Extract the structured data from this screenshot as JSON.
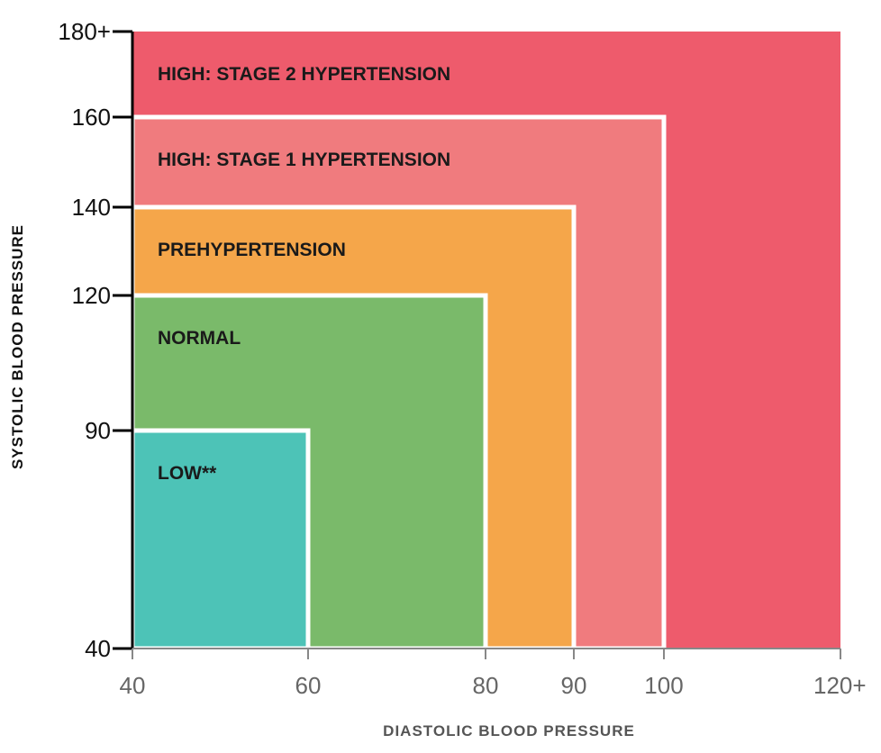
{
  "chart_data": {
    "type": "area",
    "xlabel": "DIASTOLIC BLOOD PRESSURE",
    "ylabel": "SYSTOLIC BLOOD PRESSURE",
    "x_ticks": [
      {
        "value": 40,
        "label": "40"
      },
      {
        "value": 60,
        "label": "60"
      },
      {
        "value": 80,
        "label": "80"
      },
      {
        "value": 90,
        "label": "90"
      },
      {
        "value": 100,
        "label": "100"
      },
      {
        "value": 120,
        "label": "120+"
      }
    ],
    "y_ticks": [
      {
        "value": 40,
        "label": "40"
      },
      {
        "value": 90,
        "label": "90"
      },
      {
        "value": 120,
        "label": "120"
      },
      {
        "value": 140,
        "label": "140"
      },
      {
        "value": 160,
        "label": "160"
      },
      {
        "value": 180,
        "label": "180+"
      }
    ],
    "zones": [
      {
        "label": "HIGH: STAGE 2 HYPERTENSION",
        "x_max": 120,
        "y_max": 180,
        "color": "#ee5b6c"
      },
      {
        "label": "HIGH: STAGE 1 HYPERTENSION",
        "x_max": 100,
        "y_max": 160,
        "color": "#f07b7e"
      },
      {
        "label": "PREHYPERTENSION",
        "x_max": 90,
        "y_max": 140,
        "color": "#f5a64a"
      },
      {
        "label": "NORMAL",
        "x_max": 80,
        "y_max": 120,
        "color": "#7aba6a"
      },
      {
        "label": "LOW**",
        "x_max": 60,
        "y_max": 90,
        "color": "#4dc3b7"
      }
    ]
  }
}
